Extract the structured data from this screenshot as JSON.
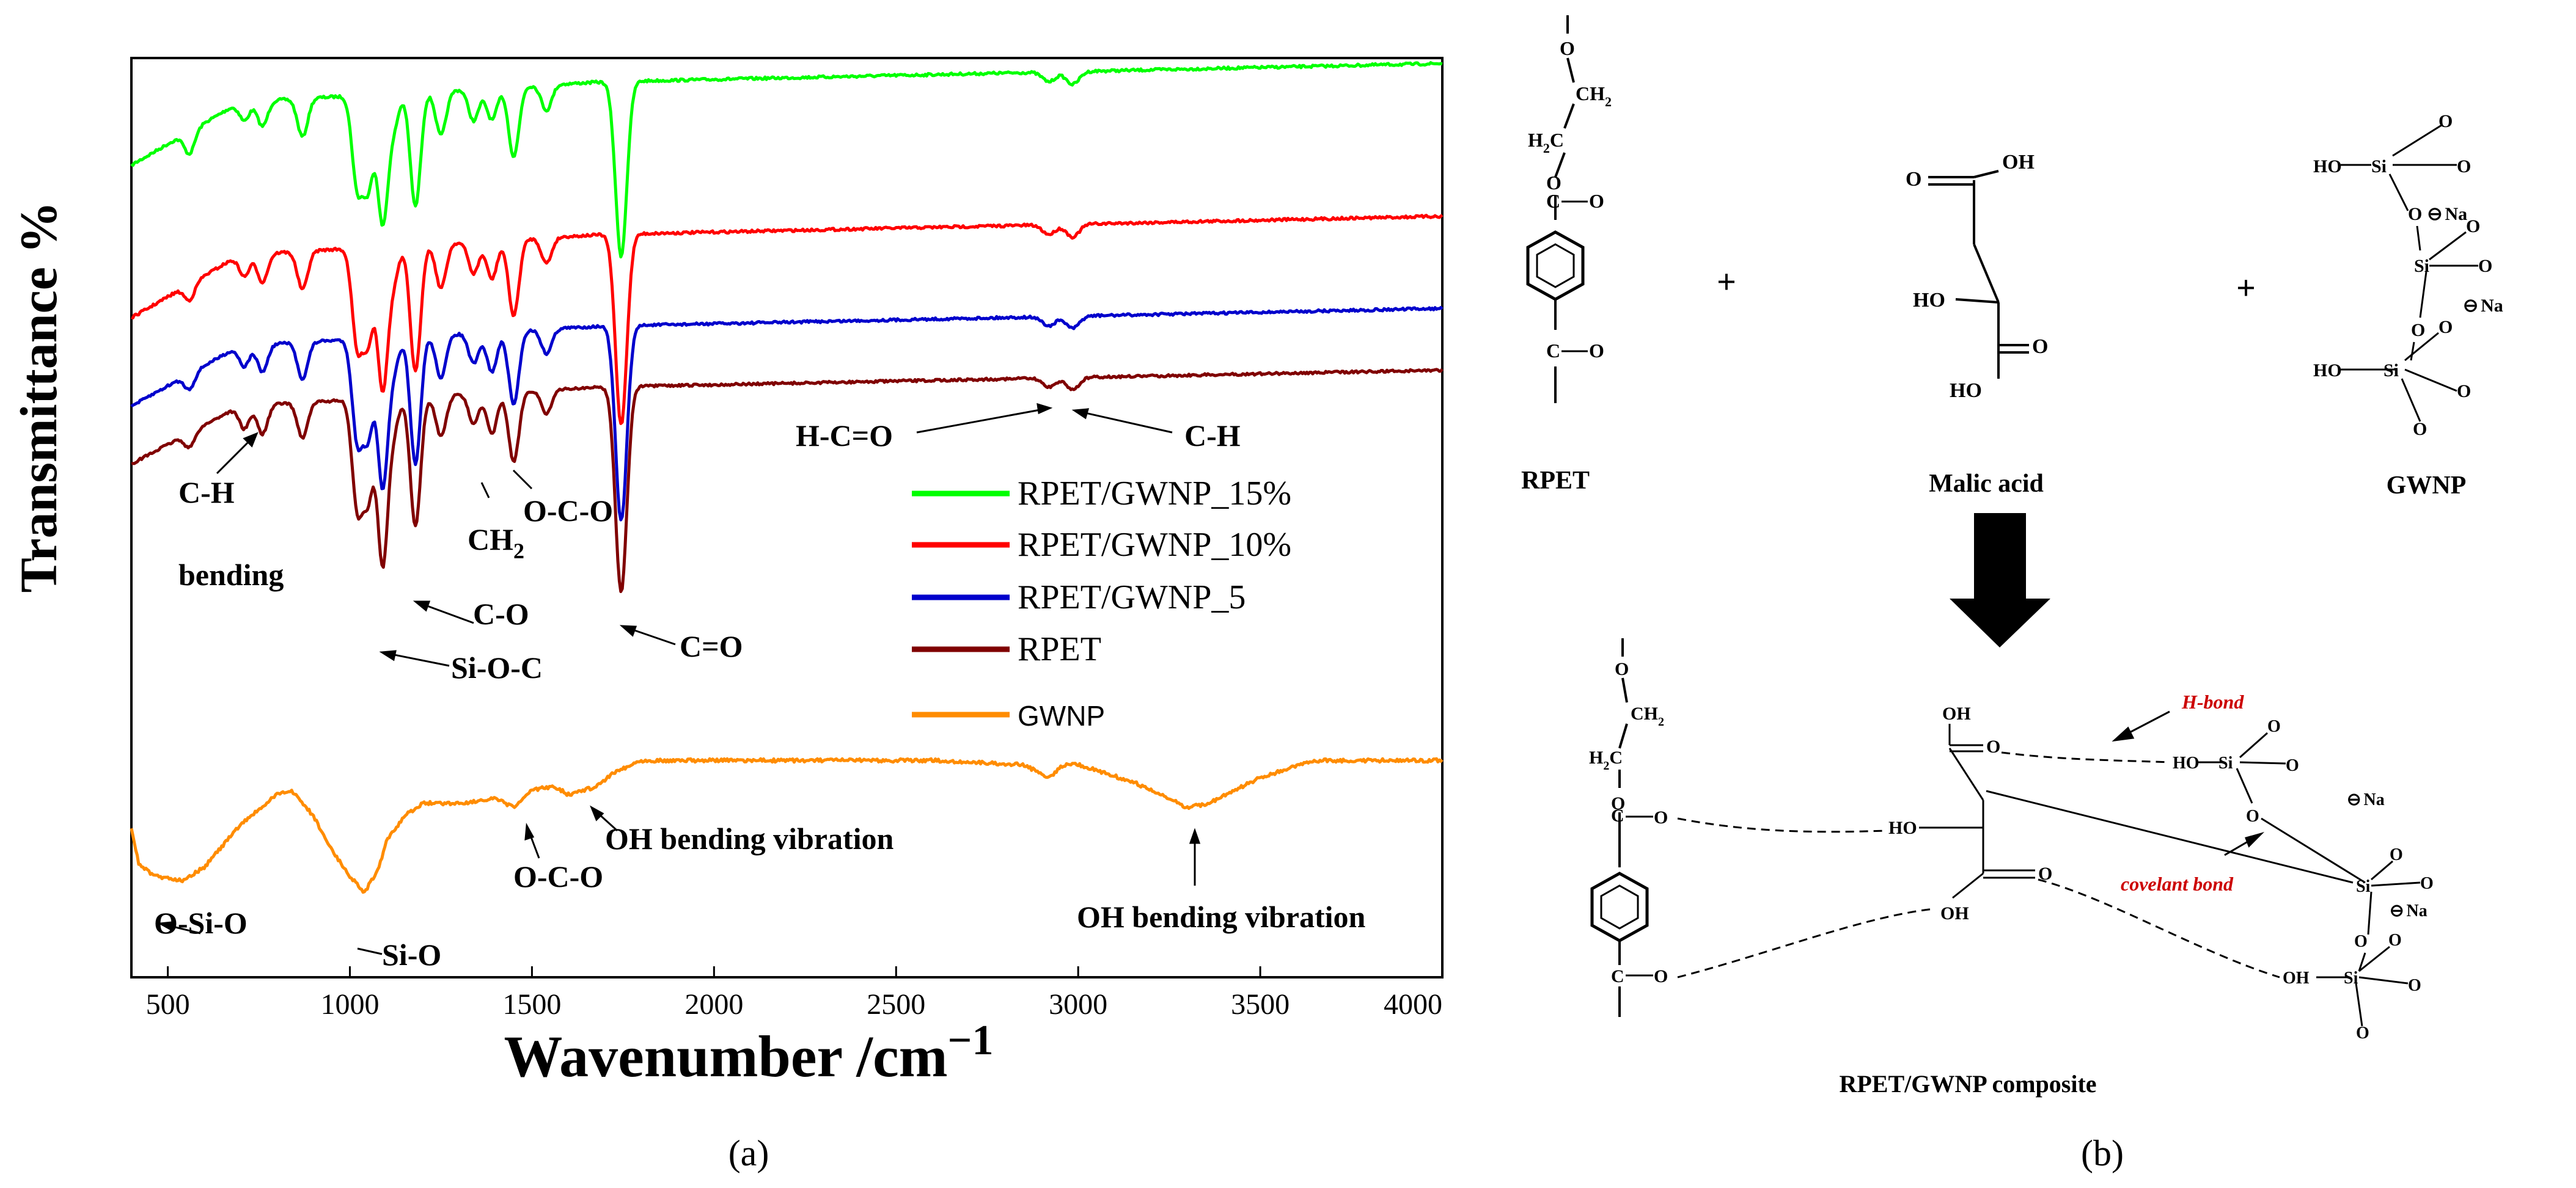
{
  "chart_data": {
    "type": "line",
    "xlabel": "Wavenumber /cm",
    "xlabel_superscript": "−1",
    "ylabel": "Transmittance %",
    "xlim": [
      400,
      4000
    ],
    "x_ticks": [
      500,
      1000,
      1500,
      2000,
      2500,
      3000,
      3500,
      4000
    ],
    "grid": false,
    "legend_position": "center-right",
    "series": [
      {
        "name": "RPET/GWNP_15%",
        "color": "#00ff00",
        "baseline": 0.93,
        "dips": [
          [
            560,
            0.07
          ],
          [
            710,
            0.06
          ],
          [
            760,
            0.08
          ],
          [
            870,
            0.12
          ],
          [
            1020,
            0.28
          ],
          [
            1050,
            0.28
          ],
          [
            1090,
            0.4
          ],
          [
            1120,
            0.1
          ],
          [
            1180,
            0.36
          ],
          [
            1250,
            0.14
          ],
          [
            1340,
            0.1
          ],
          [
            1390,
            0.1
          ],
          [
            1450,
            0.22
          ],
          [
            1540,
            0.08
          ],
          [
            1745,
            0.55
          ],
          [
            2920,
            0.03
          ],
          [
            2985,
            0.04
          ]
        ]
      },
      {
        "name": "RPET/GWNP_10%",
        "color": "#ff0000",
        "baseline": 0.72,
        "dips": [
          [
            560,
            0.05
          ],
          [
            710,
            0.07
          ],
          [
            760,
            0.09
          ],
          [
            870,
            0.12
          ],
          [
            1020,
            0.3
          ],
          [
            1050,
            0.28
          ],
          [
            1090,
            0.44
          ],
          [
            1120,
            0.1
          ],
          [
            1180,
            0.4
          ],
          [
            1250,
            0.14
          ],
          [
            1340,
            0.1
          ],
          [
            1390,
            0.12
          ],
          [
            1450,
            0.24
          ],
          [
            1540,
            0.08
          ],
          [
            1745,
            0.6
          ],
          [
            2920,
            0.03
          ],
          [
            2985,
            0.04
          ]
        ]
      },
      {
        "name": "RPET/GWNP_5",
        "color": "#0000cc",
        "baseline": 0.6,
        "dips": [
          [
            560,
            0.05
          ],
          [
            710,
            0.07
          ],
          [
            760,
            0.09
          ],
          [
            870,
            0.12
          ],
          [
            1020,
            0.32
          ],
          [
            1050,
            0.3
          ],
          [
            1090,
            0.48
          ],
          [
            1120,
            0.1
          ],
          [
            1180,
            0.42
          ],
          [
            1250,
            0.14
          ],
          [
            1340,
            0.1
          ],
          [
            1390,
            0.13
          ],
          [
            1450,
            0.24
          ],
          [
            1540,
            0.08
          ],
          [
            1745,
            0.64
          ],
          [
            2920,
            0.03
          ],
          [
            2985,
            0.04
          ]
        ]
      },
      {
        "name": "RPET",
        "color": "#800000",
        "baseline": 0.48,
        "dips": [
          [
            560,
            0.05
          ],
          [
            710,
            0.08
          ],
          [
            760,
            0.1
          ],
          [
            870,
            0.12
          ],
          [
            1020,
            0.36
          ],
          [
            1050,
            0.32
          ],
          [
            1090,
            0.56
          ],
          [
            1120,
            0.1
          ],
          [
            1180,
            0.44
          ],
          [
            1250,
            0.14
          ],
          [
            1340,
            0.1
          ],
          [
            1390,
            0.14
          ],
          [
            1450,
            0.24
          ],
          [
            1540,
            0.08
          ],
          [
            1745,
            0.7
          ],
          [
            2920,
            0.03
          ],
          [
            2985,
            0.04
          ]
        ]
      },
      {
        "name": "GWNP",
        "color": "#ff8c00",
        "baseline": 0.0,
        "type": "profile",
        "points": [
          [
            400,
            0.63
          ],
          [
            420,
            0.71
          ],
          [
            460,
            0.74
          ],
          [
            540,
            0.75
          ],
          [
            600,
            0.72
          ],
          [
            700,
            0.62
          ],
          [
            800,
            0.55
          ],
          [
            840,
            0.54
          ],
          [
            900,
            0.6
          ],
          [
            950,
            0.68
          ],
          [
            1000,
            0.74
          ],
          [
            1040,
            0.78
          ],
          [
            1080,
            0.72
          ],
          [
            1100,
            0.66
          ],
          [
            1150,
            0.6
          ],
          [
            1200,
            0.57
          ],
          [
            1300,
            0.57
          ],
          [
            1400,
            0.56
          ],
          [
            1450,
            0.58
          ],
          [
            1500,
            0.54
          ],
          [
            1560,
            0.53
          ],
          [
            1600,
            0.55
          ],
          [
            1680,
            0.53
          ],
          [
            1720,
            0.5
          ],
          [
            1800,
            0.47
          ],
          [
            2000,
            0.47
          ],
          [
            2200,
            0.47
          ],
          [
            2600,
            0.47
          ],
          [
            2850,
            0.48
          ],
          [
            2920,
            0.51
          ],
          [
            2960,
            0.48
          ],
          [
            3000,
            0.48
          ],
          [
            3150,
            0.52
          ],
          [
            3300,
            0.58
          ],
          [
            3360,
            0.57
          ],
          [
            3500,
            0.51
          ],
          [
            3650,
            0.47
          ],
          [
            4000,
            0.47
          ]
        ]
      }
    ]
  },
  "figure": {
    "panel_a_label": "(a)",
    "panel_b_label": "(b)"
  },
  "annotations": {
    "ch_bending_1": "C-H",
    "ch_bending_2": "bending",
    "ch2_main": "CH",
    "ch2_sub": "2",
    "oco_top": "O-C-O",
    "co": "C-O",
    "sioc": "Si-O-C",
    "c_eq_o": "C=O",
    "hco": "H-C=O",
    "ch": "C-H",
    "osio": "O-Si-O",
    "sio": "Si-O",
    "oco_bottom": "O-C-O",
    "oh_bend_1": "OH bending  vibration",
    "oh_bend_2": "OH bending  vibration"
  },
  "scheme": {
    "rpet_label": "RPET",
    "malic_label": "Malic acid",
    "gwnp_label": "GWNP",
    "composite_label": "RPET/GWNP composite",
    "plus": "+",
    "hbond_label": "H-bond",
    "covalent_label": "covelant bond",
    "label_color": "#cc0000",
    "atoms": {
      "O": "O",
      "OH": "OH",
      "HO": "HO",
      "Si": "Si",
      "Na": "Na",
      "ch2_main": "CH",
      "ch2_sub": "2",
      "h2c_main": "H",
      "h2c_sub": "2",
      "h2c_c": "C",
      "C": "C",
      "circle_minus": "⊖"
    }
  }
}
